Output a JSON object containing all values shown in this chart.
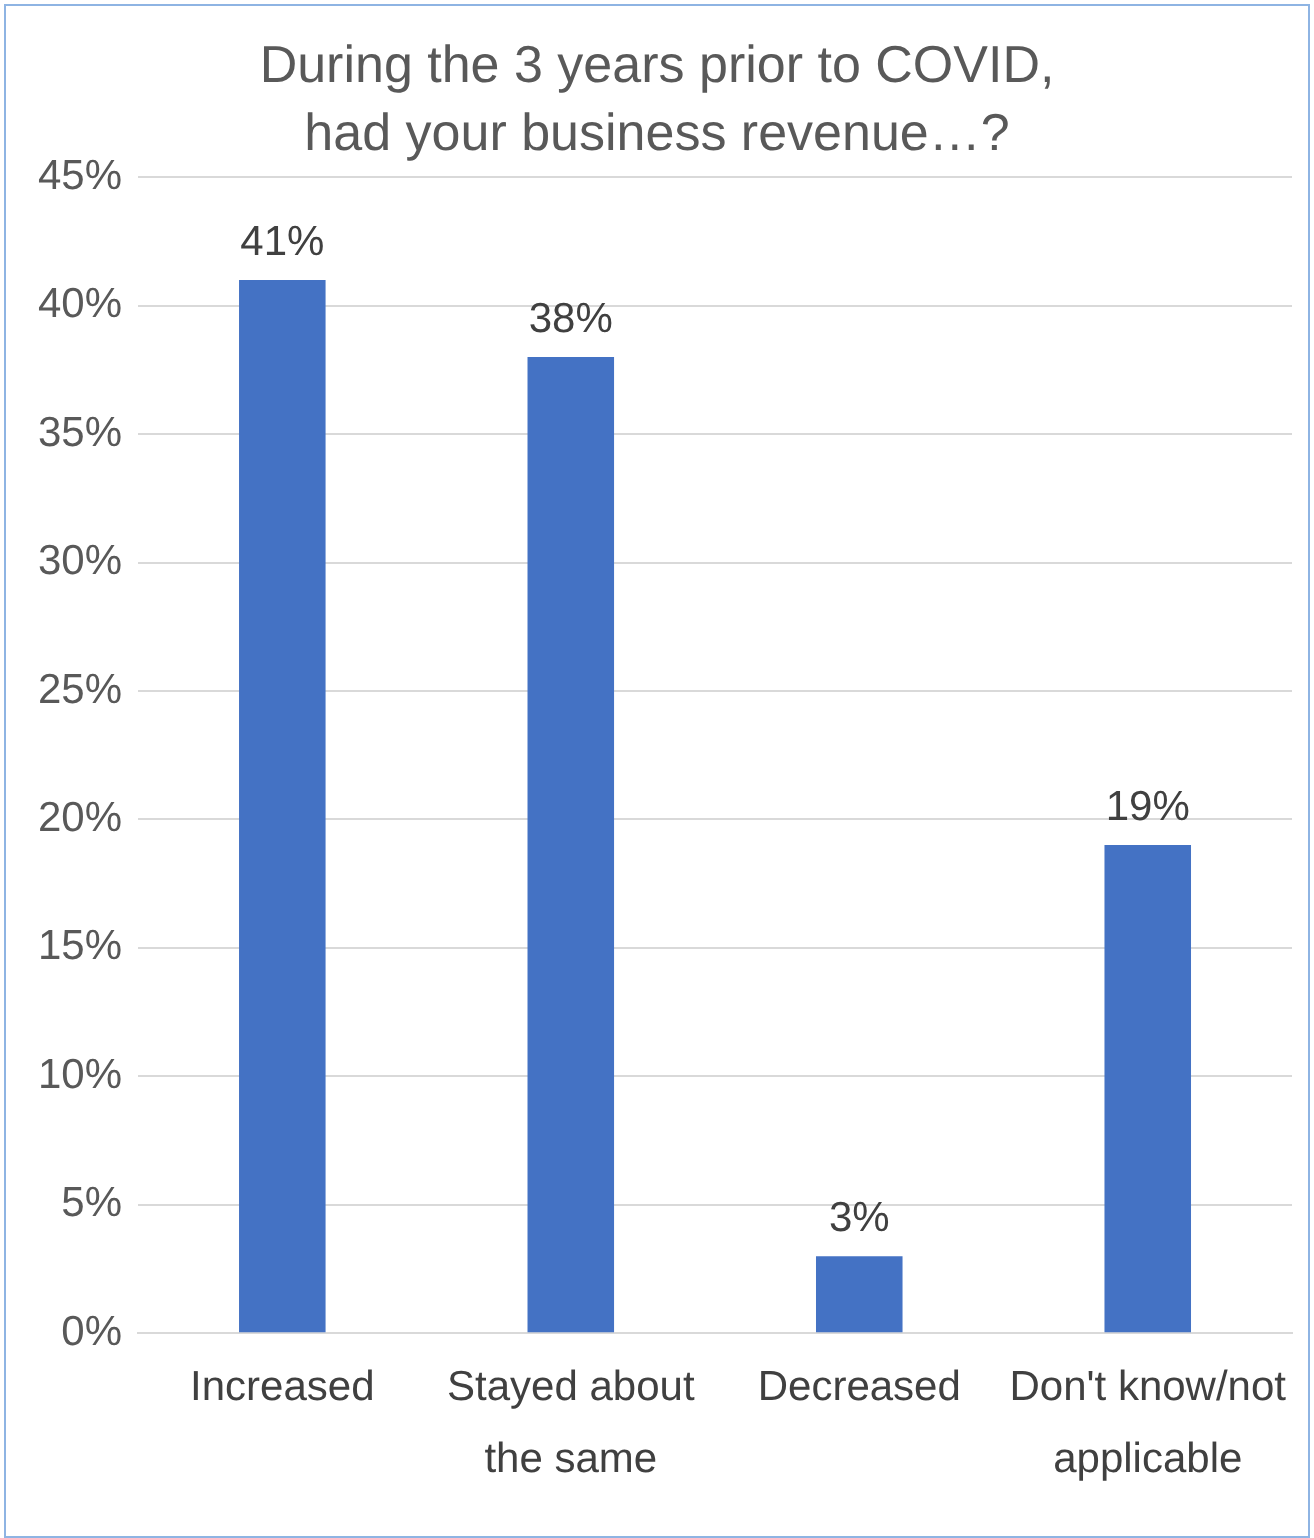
{
  "chart_data": {
    "type": "bar",
    "title": "During the 3 years prior to COVID, had your business revenue…?",
    "categories": [
      "Increased",
      "Stayed about the same",
      "Decreased",
      "Don't know/not applicable"
    ],
    "values": [
      41,
      38,
      3,
      19
    ],
    "value_labels": [
      "41%",
      "38%",
      "3%",
      "19%"
    ],
    "color": "#4472c4",
    "ylim": [
      0,
      45
    ],
    "yticks": [
      {
        "value": 0,
        "label": "0%"
      },
      {
        "value": 5,
        "label": "5%"
      },
      {
        "value": 10,
        "label": "10%"
      },
      {
        "value": 15,
        "label": "15%"
      },
      {
        "value": 20,
        "label": "20%"
      },
      {
        "value": 25,
        "label": "25%"
      },
      {
        "value": 30,
        "label": "30%"
      },
      {
        "value": 35,
        "label": "35%"
      },
      {
        "value": 40,
        "label": "40%"
      },
      {
        "value": 45,
        "label": "45%"
      }
    ],
    "grid": "y",
    "legend": false
  }
}
